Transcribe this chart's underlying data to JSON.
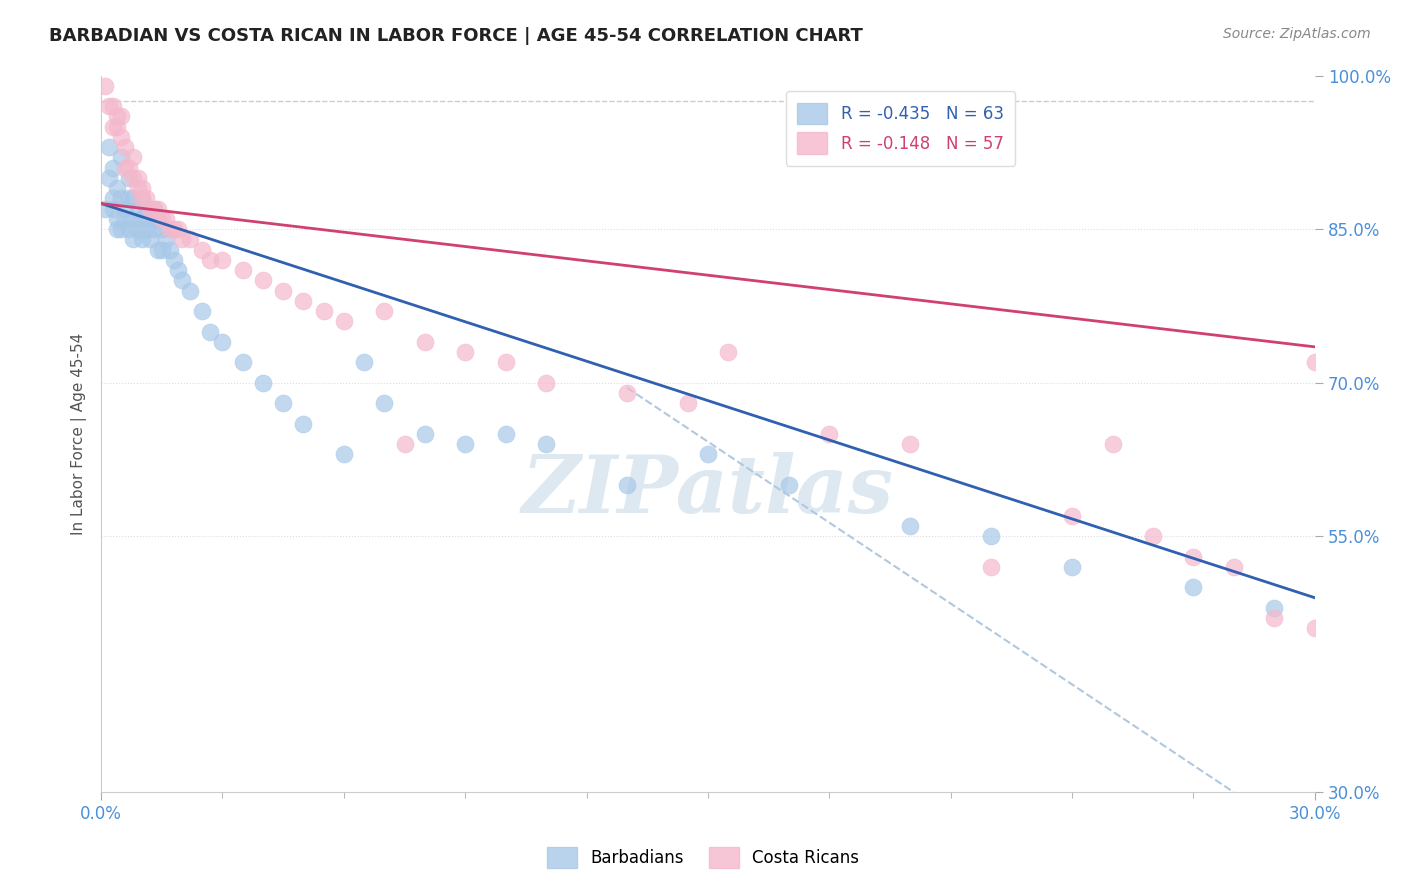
{
  "title": "BARBADIAN VS COSTA RICAN IN LABOR FORCE | AGE 45-54 CORRELATION CHART",
  "source_text": "Source: ZipAtlas.com",
  "ylabel": "In Labor Force | Age 45-54",
  "xlim": [
    0.0,
    0.3
  ],
  "ylim": [
    0.3,
    1.0
  ],
  "ytick_labels": [
    "100.0%",
    "85.0%",
    "70.0%",
    "55.0%",
    "30.0%"
  ],
  "ytick_values": [
    1.0,
    0.85,
    0.7,
    0.55,
    0.3
  ],
  "blue_R": -0.435,
  "blue_N": 63,
  "pink_R": -0.148,
  "pink_N": 57,
  "blue_color": "#a8c8e8",
  "pink_color": "#f4b8cc",
  "trend_blue_color": "#3060b0",
  "trend_pink_color": "#d04070",
  "trend_dashed_color": "#b0c8e0",
  "hline_color": "#c0c0c0",
  "watermark_color": "#dde8f0",
  "legend_blue_label": "Barbadians",
  "legend_pink_label": "Costa Ricans",
  "blue_color_legend": "#a8c8e8",
  "pink_color_legend": "#f4b8cc",
  "legend_blue_text_color": "#3060b0",
  "legend_pink_text_color": "#d04070",
  "tick_label_color": "#4a90d9",
  "title_color": "#222222",
  "ylabel_color": "#555555",
  "source_color": "#888888",
  "background_color": "#ffffff",
  "blue_x": [
    0.001,
    0.002,
    0.002,
    0.003,
    0.003,
    0.003,
    0.004,
    0.004,
    0.004,
    0.005,
    0.005,
    0.005,
    0.006,
    0.006,
    0.007,
    0.007,
    0.007,
    0.008,
    0.008,
    0.008,
    0.009,
    0.009,
    0.01,
    0.01,
    0.01,
    0.011,
    0.011,
    0.012,
    0.012,
    0.013,
    0.013,
    0.014,
    0.014,
    0.015,
    0.015,
    0.016,
    0.017,
    0.018,
    0.019,
    0.02,
    0.022,
    0.025,
    0.027,
    0.03,
    0.035,
    0.04,
    0.045,
    0.05,
    0.06,
    0.065,
    0.07,
    0.08,
    0.09,
    0.1,
    0.11,
    0.13,
    0.15,
    0.17,
    0.2,
    0.22,
    0.24,
    0.27,
    0.29
  ],
  "blue_y": [
    0.87,
    0.93,
    0.9,
    0.88,
    0.91,
    0.87,
    0.89,
    0.86,
    0.85,
    0.92,
    0.88,
    0.85,
    0.87,
    0.86,
    0.9,
    0.88,
    0.85,
    0.88,
    0.86,
    0.84,
    0.87,
    0.85,
    0.88,
    0.86,
    0.84,
    0.87,
    0.85,
    0.86,
    0.84,
    0.87,
    0.85,
    0.86,
    0.83,
    0.85,
    0.83,
    0.84,
    0.83,
    0.82,
    0.81,
    0.8,
    0.79,
    0.77,
    0.75,
    0.74,
    0.72,
    0.7,
    0.68,
    0.66,
    0.63,
    0.72,
    0.68,
    0.65,
    0.64,
    0.65,
    0.64,
    0.6,
    0.63,
    0.6,
    0.56,
    0.55,
    0.52,
    0.5,
    0.48
  ],
  "pink_x": [
    0.001,
    0.002,
    0.003,
    0.003,
    0.004,
    0.004,
    0.005,
    0.005,
    0.006,
    0.006,
    0.007,
    0.008,
    0.008,
    0.009,
    0.009,
    0.01,
    0.01,
    0.011,
    0.012,
    0.013,
    0.014,
    0.015,
    0.016,
    0.017,
    0.018,
    0.019,
    0.02,
    0.022,
    0.025,
    0.027,
    0.03,
    0.035,
    0.04,
    0.045,
    0.05,
    0.055,
    0.06,
    0.07,
    0.075,
    0.08,
    0.09,
    0.1,
    0.11,
    0.13,
    0.145,
    0.155,
    0.18,
    0.2,
    0.22,
    0.24,
    0.25,
    0.26,
    0.27,
    0.28,
    0.29,
    0.3,
    0.3
  ],
  "pink_y": [
    0.99,
    0.97,
    0.97,
    0.95,
    0.95,
    0.96,
    0.96,
    0.94,
    0.93,
    0.91,
    0.91,
    0.92,
    0.9,
    0.9,
    0.89,
    0.89,
    0.88,
    0.88,
    0.87,
    0.87,
    0.87,
    0.86,
    0.86,
    0.85,
    0.85,
    0.85,
    0.84,
    0.84,
    0.83,
    0.82,
    0.82,
    0.81,
    0.8,
    0.79,
    0.78,
    0.77,
    0.76,
    0.77,
    0.64,
    0.74,
    0.73,
    0.72,
    0.7,
    0.69,
    0.68,
    0.73,
    0.65,
    0.64,
    0.52,
    0.57,
    0.64,
    0.55,
    0.53,
    0.52,
    0.47,
    0.72,
    0.46
  ],
  "trend_blue_x1": 0.0,
  "trend_blue_y1": 0.875,
  "trend_blue_x2": 0.3,
  "trend_blue_y2": 0.49,
  "trend_pink_x1": 0.0,
  "trend_pink_y1": 0.875,
  "trend_pink_x2": 0.3,
  "trend_pink_y2": 0.735,
  "trend_dash_x1": 0.13,
  "trend_dash_y1": 0.695,
  "trend_dash_x2": 0.28,
  "trend_dash_y2": 0.3,
  "hline_y": 0.975,
  "title_fontsize": 13,
  "watermark": "ZIPatlas"
}
